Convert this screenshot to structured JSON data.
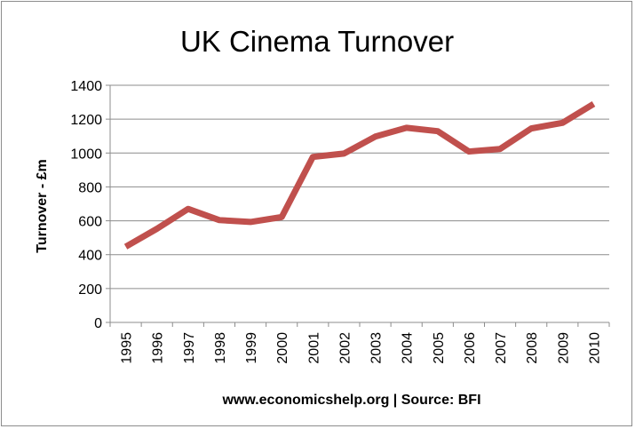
{
  "chart_data": {
    "type": "line",
    "title": "UK Cinema Turnover",
    "ylabel": "Turnover - £m",
    "xlabel": "www.economicshelp.org | Source: BFI",
    "x": [
      "1995",
      "1996",
      "1997",
      "1998",
      "1999",
      "2000",
      "2001",
      "2002",
      "2003",
      "2004",
      "2005",
      "2006",
      "2007",
      "2008",
      "2009",
      "2010"
    ],
    "series": [
      {
        "values": [
          447,
          553,
          670,
          604,
          593,
          622,
          977,
          997,
          1097,
          1149,
          1129,
          1009,
          1024,
          1145,
          1178,
          1290
        ]
      }
    ],
    "ylim": [
      0,
      1400
    ],
    "yticks": [
      "0",
      "200",
      "400",
      "600",
      "800",
      "1000",
      "1200",
      "1400"
    ],
    "grid": true,
    "legend": "none",
    "line_color": "#c0504d"
  }
}
